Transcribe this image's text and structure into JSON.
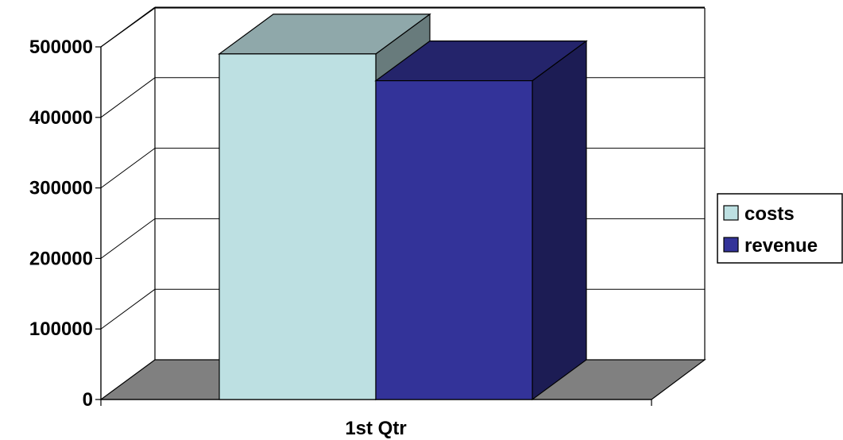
{
  "chart_data": {
    "type": "bar",
    "categories": [
      "1st Qtr"
    ],
    "series": [
      {
        "name": "costs",
        "values": [
          490000
        ],
        "color": "#BDE0E2"
      },
      {
        "name": "revenue",
        "values": [
          452000
        ],
        "color": "#333399"
      }
    ],
    "yticks": [
      "0",
      "100000",
      "200000",
      "300000",
      "400000",
      "500000"
    ],
    "ylim": [
      0,
      500000
    ],
    "grid": true,
    "style": "3d-clustered-column",
    "floor_color": "#808080",
    "legend_position": "right",
    "title": "",
    "xlabel": "",
    "ylabel": ""
  }
}
